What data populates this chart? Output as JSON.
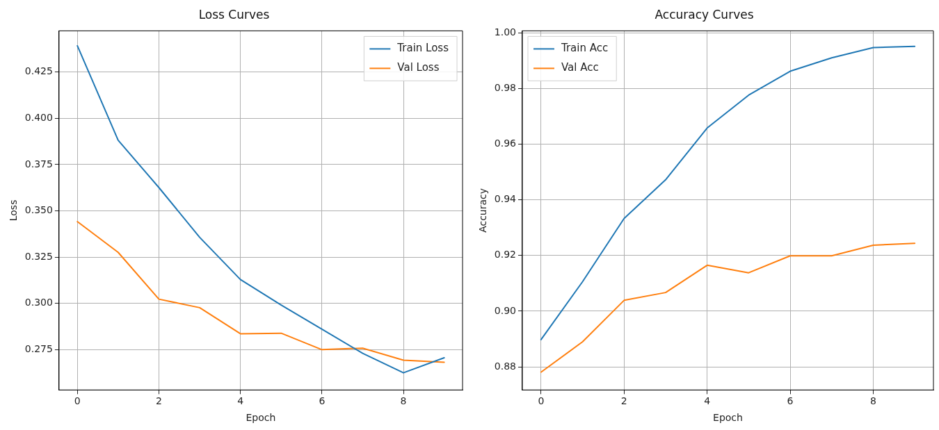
{
  "chart_data": [
    {
      "type": "line",
      "title": "Loss Curves",
      "xlabel": "Epoch",
      "ylabel": "Loss",
      "x": [
        0,
        1,
        2,
        3,
        4,
        5,
        6,
        7,
        8,
        9
      ],
      "series": [
        {
          "name": "Train Loss",
          "color": "#1f77b4",
          "values": [
            0.4392,
            0.3882,
            0.3626,
            0.3357,
            0.3129,
            0.2991,
            0.2861,
            0.273,
            0.2625,
            0.2706
          ]
        },
        {
          "name": "Val Loss",
          "color": "#ff7f0e",
          "values": [
            0.3442,
            0.3276,
            0.3023,
            0.2977,
            0.2836,
            0.2839,
            0.275,
            0.2758,
            0.2693,
            0.2682
          ]
        }
      ],
      "xlim": [
        -0.45,
        9.45
      ],
      "xticks": [
        0,
        2,
        4,
        6,
        8
      ],
      "ylim": [
        0.2532,
        0.4473
      ],
      "yticks": [
        0.275,
        {
          "value": 0.3,
          "label": "0.300"
        },
        0.325,
        {
          "value": 0.35,
          "label": "0.350"
        },
        0.375,
        {
          "value": 0.4,
          "label": "0.400"
        },
        0.425
      ],
      "grid": true,
      "legend": "top right",
      "marker": "none",
      "line_style": "solid"
    },
    {
      "type": "line",
      "title": "Accuracy Curves",
      "xlabel": "Epoch",
      "ylabel": "Accuracy",
      "x": [
        0,
        1,
        2,
        3,
        4,
        5,
        6,
        7,
        8,
        9
      ],
      "series": [
        {
          "name": "Train Acc",
          "color": "#1f77b4",
          "values": [
            0.8898,
            0.9106,
            0.9333,
            0.9472,
            0.9658,
            0.9776,
            0.9862,
            0.991,
            0.9947,
            0.9951
          ]
        },
        {
          "name": "Val Acc",
          "color": "#ff7f0e",
          "values": [
            0.8781,
            0.889,
            0.9039,
            0.9067,
            0.9165,
            0.9138,
            0.9199,
            0.9199,
            0.9237,
            0.9244
          ]
        }
      ],
      "xlim": [
        -0.45,
        9.45
      ],
      "xticks": [
        0,
        2,
        4,
        6,
        8
      ],
      "ylim": [
        0.8717,
        1.0007
      ],
      "yticks": [
        0.88,
        {
          "value": 0.9,
          "label": "0.90"
        },
        0.92,
        0.94,
        0.96,
        0.98,
        {
          "value": 1,
          "label": "1.00"
        }
      ],
      "grid": true,
      "legend": "top left",
      "marker": "none",
      "line_style": "solid"
    }
  ]
}
